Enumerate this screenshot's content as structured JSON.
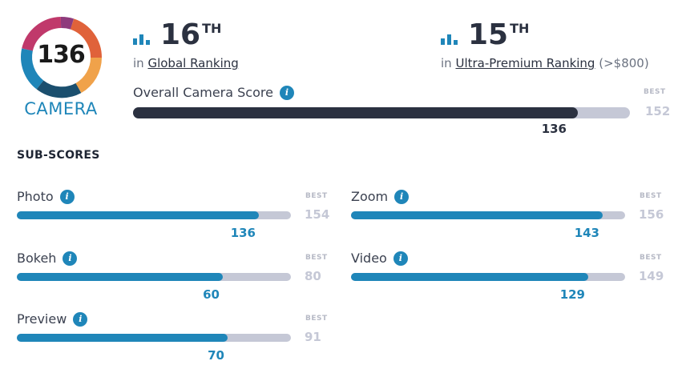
{
  "badge": {
    "score": "136",
    "label": "CAMERA"
  },
  "rankings": [
    {
      "position": "16",
      "suffix": "TH",
      "prefix": "in",
      "link": "Global Ranking",
      "extra": ""
    },
    {
      "position": "15",
      "suffix": "TH",
      "prefix": "in",
      "link": "Ultra-Premium Ranking",
      "extra": "(>$800)"
    }
  ],
  "overall": {
    "label": "Overall Camera Score",
    "score": 136,
    "best": 152,
    "best_label": "BEST"
  },
  "subscores_title": "SUB-SCORES",
  "subscores": [
    {
      "name": "Photo",
      "score": 136,
      "best": 154,
      "best_label": "BEST"
    },
    {
      "name": "Zoom",
      "score": 143,
      "best": 156,
      "best_label": "BEST"
    },
    {
      "name": "Bokeh",
      "score": 60,
      "best": 80,
      "best_label": "BEST"
    },
    {
      "name": "Video",
      "score": 129,
      "best": 149,
      "best_label": "BEST"
    },
    {
      "name": "Preview",
      "score": 70,
      "best": 91,
      "best_label": "BEST"
    }
  ],
  "colors": {
    "accent": "#1f86b9",
    "dark": "#2b3140",
    "track": "#c5c8d6"
  },
  "icons": {
    "rank": "bar-chart-icon",
    "info": "info-icon"
  }
}
